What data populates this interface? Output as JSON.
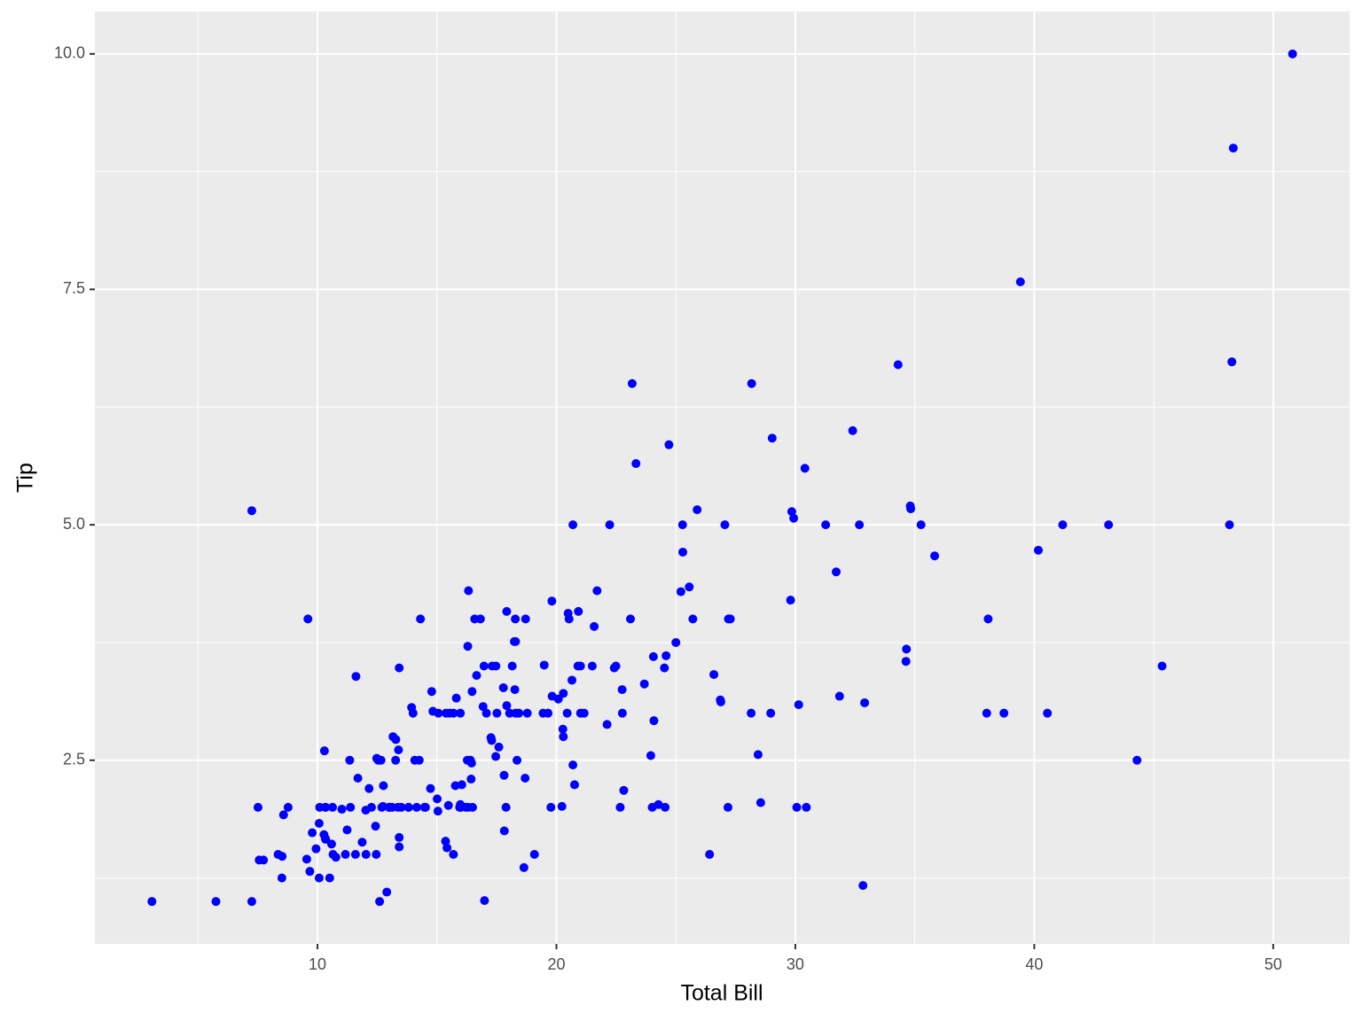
{
  "chart_data": {
    "type": "scatter",
    "x_label": "Total Bill",
    "y_label": "Tip",
    "color": "#0000ff",
    "grid": true,
    "xlim": [
      0.683,
      53.197
    ],
    "ylim": [
      0.55,
      10.45
    ],
    "xticks": [
      10,
      20,
      30,
      40,
      50
    ],
    "yticks": [
      2.5,
      {
        "value": 5,
        "label": "5.0"
      },
      7.5,
      {
        "value": 10,
        "label": "10.0"
      }
    ],
    "minor_xticks": [
      5,
      15,
      25,
      35,
      45
    ],
    "minor_yticks": [
      1.25,
      3.75,
      6.25,
      8.75
    ],
    "x": [
      16.99,
      10.34,
      21.01,
      23.68,
      24.59,
      25.29,
      8.77,
      26.88,
      15.04,
      14.78,
      10.27,
      35.26,
      15.42,
      18.43,
      14.83,
      21.58,
      10.33,
      16.29,
      16.97,
      20.65,
      17.92,
      20.29,
      15.77,
      39.42,
      19.82,
      17.81,
      13.37,
      12.69,
      21.7,
      19.65,
      9.55,
      18.35,
      15.06,
      20.69,
      17.78,
      24.06,
      16.31,
      16.93,
      18.69,
      31.27,
      16.04,
      17.46,
      13.94,
      9.68,
      30.4,
      18.29,
      22.23,
      32.4,
      28.55,
      18.04,
      12.54,
      10.29,
      34.81,
      9.94,
      25.56,
      19.49,
      38.01,
      26.41,
      11.24,
      48.27,
      20.29,
      13.81,
      11.02,
      18.29,
      17.59,
      20.08,
      16.45,
      3.07,
      20.23,
      15.01,
      12.02,
      17.07,
      26.86,
      25.28,
      14.73,
      10.51,
      17.92,
      27.2,
      22.76,
      17.29,
      19.44,
      16.66,
      10.07,
      32.68,
      15.98,
      34.83,
      13.03,
      18.28,
      24.71,
      21.16,
      28.97,
      22.49,
      5.75,
      16.32,
      22.75,
      40.17,
      27.28,
      12.03,
      21.01,
      12.46,
      11.35,
      15.38,
      44.3,
      22.42,
      20.92,
      15.36,
      20.49,
      25.21,
      18.24,
      14.31,
      14.0,
      7.25,
      38.07,
      23.95,
      25.71,
      17.31,
      29.93,
      10.65,
      12.43,
      24.08,
      11.69,
      13.42,
      14.26,
      15.95,
      12.48,
      29.8,
      8.52,
      14.52,
      11.38,
      22.82,
      19.08,
      20.27,
      11.17,
      12.26,
      18.26,
      8.51,
      10.33,
      14.15,
      16.0,
      13.16,
      17.47,
      34.3,
      41.19,
      27.05,
      16.43,
      8.35,
      18.64,
      11.87,
      9.78,
      7.51,
      14.07,
      13.13,
      17.26,
      24.55,
      19.77,
      29.85,
      48.17,
      25.0,
      13.39,
      16.49,
      21.5,
      12.66,
      16.21,
      13.81,
      17.51,
      24.52,
      20.76,
      31.71,
      10.59,
      10.63,
      50.81,
      15.81,
      7.25,
      31.85,
      16.82,
      32.9,
      17.89,
      14.48,
      9.6,
      34.63,
      34.65,
      23.33,
      45.35,
      23.17,
      40.55,
      20.69,
      20.9,
      30.46,
      18.15,
      23.1,
      15.69,
      19.81,
      28.44,
      15.48,
      16.58,
      7.56,
      10.34,
      43.11,
      13.0,
      13.51,
      18.71,
      12.74,
      13.0,
      16.4,
      20.53,
      16.47,
      26.59,
      38.73,
      24.27,
      12.76,
      30.06,
      25.89,
      48.33,
      13.27,
      28.17,
      12.9,
      28.15,
      11.59,
      7.74,
      30.14,
      12.16,
      13.42,
      8.58,
      15.98,
      13.42,
      16.27,
      10.09,
      20.45,
      13.28,
      22.12,
      24.01,
      15.69,
      11.61,
      10.77,
      15.53,
      10.07,
      12.6,
      32.83,
      35.83,
      29.03,
      27.18,
      22.67,
      17.82,
      18.78
    ],
    "values": [
      1.01,
      1.66,
      3.5,
      3.31,
      3.61,
      4.71,
      2.0,
      3.12,
      1.96,
      3.23,
      1.71,
      5.0,
      1.57,
      3.0,
      3.02,
      3.92,
      1.67,
      3.71,
      3.5,
      3.35,
      4.08,
      2.75,
      2.23,
      7.58,
      3.18,
      2.34,
      2.0,
      2.0,
      4.3,
      3.0,
      1.45,
      2.5,
      3.0,
      2.45,
      3.27,
      3.6,
      2.0,
      3.07,
      2.31,
      5.0,
      2.24,
      2.54,
      3.06,
      1.32,
      5.6,
      3.0,
      5.0,
      6.0,
      2.05,
      3.0,
      2.5,
      2.6,
      5.2,
      1.56,
      4.34,
      3.51,
      3.0,
      1.5,
      1.76,
      6.73,
      3.21,
      2.0,
      1.98,
      3.76,
      2.64,
      3.15,
      2.47,
      1.0,
      2.01,
      2.09,
      1.97,
      3.0,
      3.14,
      5.0,
      2.2,
      1.25,
      3.08,
      4.0,
      3.0,
      2.71,
      3.0,
      3.4,
      1.83,
      5.0,
      2.03,
      5.17,
      2.0,
      4.0,
      5.85,
      3.0,
      3.0,
      3.5,
      1.0,
      4.3,
      3.25,
      4.73,
      4.0,
      1.5,
      3.0,
      1.5,
      2.5,
      3.0,
      2.5,
      3.48,
      4.08,
      1.64,
      4.06,
      4.29,
      3.76,
      4.0,
      3.0,
      1.0,
      4.0,
      2.55,
      4.0,
      3.5,
      5.07,
      1.5,
      1.8,
      2.92,
      2.31,
      1.68,
      2.5,
      2.0,
      2.52,
      4.2,
      1.48,
      2.0,
      2.0,
      2.18,
      1.5,
      2.83,
      1.5,
      2.0,
      3.25,
      1.25,
      2.0,
      2.0,
      2.0,
      2.75,
      3.5,
      6.7,
      5.0,
      5.0,
      2.3,
      1.5,
      1.36,
      1.63,
      1.73,
      2.0,
      2.5,
      2.0,
      2.74,
      2.0,
      2.0,
      5.14,
      5.0,
      3.75,
      2.61,
      2.0,
      3.5,
      2.5,
      2.0,
      2.0,
      3.0,
      3.48,
      2.24,
      4.5,
      1.61,
      2.0,
      10.0,
      3.16,
      5.15,
      3.18,
      4.0,
      3.11,
      2.0,
      2.0,
      4.0,
      3.55,
      3.68,
      5.65,
      3.5,
      6.5,
      3.0,
      5.0,
      3.5,
      2.0,
      3.5,
      4.0,
      1.5,
      4.19,
      2.56,
      2.02,
      4.0,
      1.44,
      2.0,
      5.0,
      2.0,
      2.0,
      4.0,
      2.01,
      2.0,
      2.5,
      4.0,
      3.23,
      3.41,
      3.0,
      2.03,
      2.23,
      2.0,
      5.16,
      9.0,
      2.5,
      6.5,
      1.1,
      3.0,
      1.5,
      1.44,
      3.09,
      2.2,
      3.48,
      1.92,
      3.0,
      1.58,
      2.5,
      2.0,
      3.0,
      2.72,
      2.88,
      2.0,
      3.0,
      3.39,
      1.47,
      3.0,
      1.25,
      1.0,
      1.17,
      4.67,
      5.92,
      2.0,
      2.0,
      1.75,
      3.0
    ]
  }
}
